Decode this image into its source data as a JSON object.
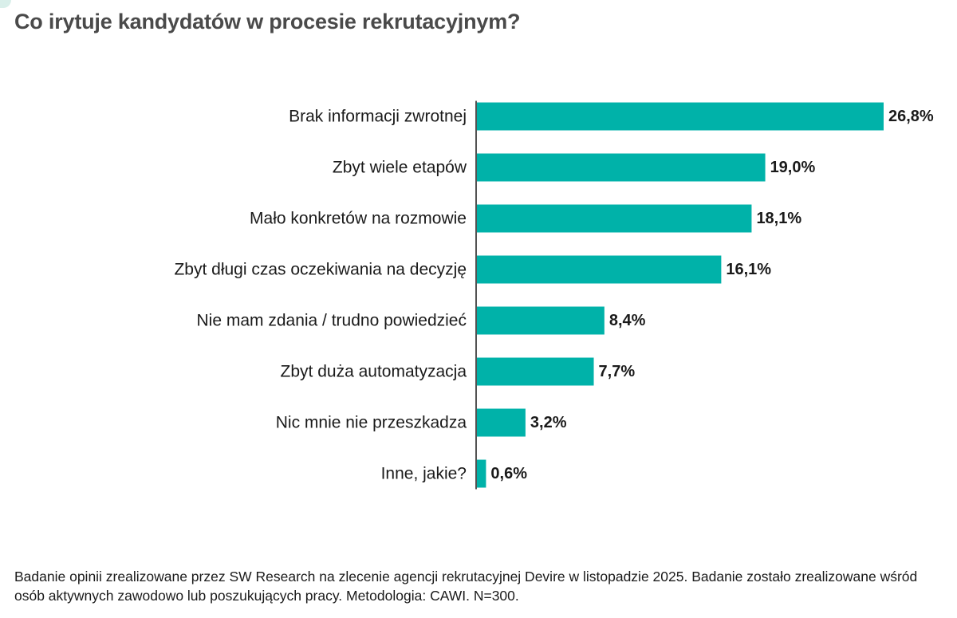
{
  "title": "Co irytuje kandydatów w procesie rekrutacyjnym?",
  "footnote": "Badanie opinii zrealizowane przez SW Research na zlecenie agencji rekrutacyjnej Devire w listopadzie 2025. Badanie zostało zrealizowane wśród osób aktywnych zawodowo lub poszukujących pracy. Metodologia: CAWI. N=300.",
  "colors": {
    "bar": "#00b2a9",
    "axis": "#1a1a1a",
    "title": "#4a4a4a",
    "corner_accent": "#d9efea"
  },
  "chart_data": {
    "type": "bar",
    "orientation": "horizontal",
    "title": "Co irytuje kandydatów w procesie rekrutacyjnym?",
    "xlabel": "",
    "ylabel": "",
    "unit": "%",
    "xlim": [
      0,
      26.8
    ],
    "grid": false,
    "legend": "none",
    "categories": [
      "Brak informacji zwrotnej",
      "Zbyt wiele etapów",
      "Mało konkretów na rozmowie",
      "Zbyt długi czas oczekiwania na decyzję",
      "Nie mam zdania / trudno powiedzieć",
      "Zbyt duża automatyzacja",
      "Nic mnie nie przeszkadza",
      "Inne, jakie?"
    ],
    "values": [
      26.8,
      19.0,
      18.1,
      16.1,
      8.4,
      7.7,
      3.2,
      0.6
    ],
    "value_labels": [
      "26,8%",
      "19,0%",
      "18,1%",
      "16,1%",
      "8,4%",
      "7,7%",
      "3,2%",
      "0,6%"
    ]
  }
}
